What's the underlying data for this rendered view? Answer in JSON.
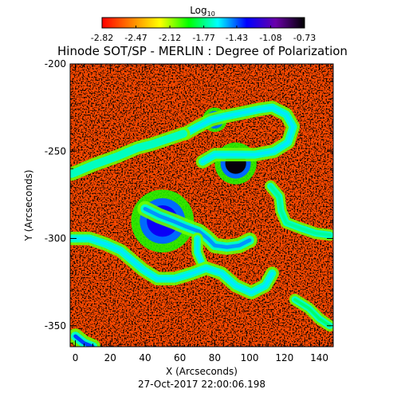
{
  "chart_data": {
    "type": "heatmap",
    "title": "Hinode SOT/SP - MERLIN : Degree of Polarization",
    "xlabel": "X (Arcseconds)",
    "ylabel": "Y (Arcseconds)",
    "timestamp": "27-Oct-2017 22:00:06.198",
    "xlim": [
      -3,
      148
    ],
    "ylim": [
      -362,
      -200
    ],
    "x_ticks": [
      0,
      20,
      40,
      60,
      80,
      100,
      120,
      140
    ],
    "x_tick_labels": [
      "0",
      "20",
      "40",
      "60",
      "80",
      "100",
      "120",
      "140"
    ],
    "y_ticks": [
      -200,
      -250,
      -300,
      -350
    ],
    "y_tick_labels": [
      "-200",
      "-250",
      "-300",
      "-350"
    ],
    "colorbar": {
      "label_base": "Log",
      "label_sub": "10",
      "scale": "log10",
      "range": [
        -2.82,
        -0.73
      ],
      "tick_values": [
        -2.82,
        -2.47,
        -2.12,
        -1.77,
        -1.43,
        -1.08,
        -0.73
      ],
      "tick_labels": [
        "-2.82",
        "-2.47",
        "-2.12",
        "-1.77",
        "-1.43",
        "-1.08",
        "-0.73"
      ],
      "colors": [
        "#ff0000",
        "#ff8000",
        "#ffff00",
        "#00ff00",
        "#00ffff",
        "#0000ff",
        "#6a00a8",
        "#000000"
      ]
    },
    "background_level": -2.6,
    "features": [
      {
        "kind": "spot",
        "x": 92,
        "y": -257,
        "r": 6,
        "level": -0.75
      },
      {
        "kind": "spot",
        "x": 80,
        "y": -232,
        "r": 3.5,
        "level": -0.9
      },
      {
        "kind": "spot",
        "x": 50,
        "y": -290,
        "r": 9,
        "level": -1.3
      },
      {
        "kind": "network",
        "path": [
          [
            63,
            -240
          ],
          [
            70,
            -236
          ],
          [
            78,
            -232
          ],
          [
            86,
            -230
          ],
          [
            96,
            -228
          ],
          [
            106,
            -226
          ],
          [
            113,
            -225
          ],
          [
            121,
            -229
          ],
          [
            125,
            -236
          ],
          [
            122,
            -245
          ],
          [
            114,
            -250
          ],
          [
            103,
            -252
          ],
          [
            92,
            -252
          ],
          [
            80,
            -252
          ],
          [
            73,
            -256
          ]
        ],
        "width": 3.5,
        "level": -1.6
      },
      {
        "kind": "network",
        "path": [
          [
            -2,
            -263
          ],
          [
            10,
            -258
          ],
          [
            24,
            -253
          ],
          [
            36,
            -248
          ],
          [
            44,
            -246
          ],
          [
            53,
            -243
          ],
          [
            62,
            -240
          ]
        ],
        "width": 3.5,
        "level": -1.7
      },
      {
        "kind": "network",
        "path": [
          [
            40,
            -283
          ],
          [
            48,
            -287
          ],
          [
            56,
            -290
          ],
          [
            63,
            -293
          ],
          [
            71,
            -296
          ],
          [
            76,
            -300
          ],
          [
            80,
            -304
          ],
          [
            87,
            -305
          ],
          [
            94,
            -304
          ],
          [
            100,
            -301
          ]
        ],
        "width": 4,
        "level": -1.5
      },
      {
        "kind": "network",
        "path": [
          [
            70,
            -300
          ],
          [
            70,
            -308
          ],
          [
            73,
            -315
          ]
        ],
        "width": 3,
        "level": -1.6
      },
      {
        "kind": "network",
        "path": [
          [
            -2,
            -300
          ],
          [
            8,
            -300
          ],
          [
            17,
            -303
          ],
          [
            26,
            -307
          ],
          [
            33,
            -313
          ],
          [
            39,
            -318
          ],
          [
            47,
            -323
          ],
          [
            57,
            -323
          ],
          [
            67,
            -320
          ],
          [
            75,
            -317
          ],
          [
            84,
            -320
          ],
          [
            92,
            -327
          ],
          [
            101,
            -331
          ],
          [
            109,
            -327
          ],
          [
            113,
            -320
          ]
        ],
        "width": 3.5,
        "level": -1.6
      },
      {
        "kind": "network",
        "path": [
          [
            112,
            -270
          ],
          [
            117,
            -276
          ],
          [
            118,
            -284
          ],
          [
            121,
            -291
          ],
          [
            129,
            -294
          ],
          [
            138,
            -297
          ],
          [
            146,
            -298
          ]
        ],
        "width": 3,
        "level": -1.75
      },
      {
        "kind": "network",
        "path": [
          [
            126,
            -335
          ],
          [
            134,
            -340
          ],
          [
            140,
            -346
          ],
          [
            146,
            -350
          ]
        ],
        "width": 3,
        "level": -1.8
      },
      {
        "kind": "network",
        "path": [
          [
            0,
            -356
          ],
          [
            5,
            -360
          ],
          [
            10,
            -362
          ]
        ],
        "width": 4,
        "level": -1.4
      }
    ]
  }
}
